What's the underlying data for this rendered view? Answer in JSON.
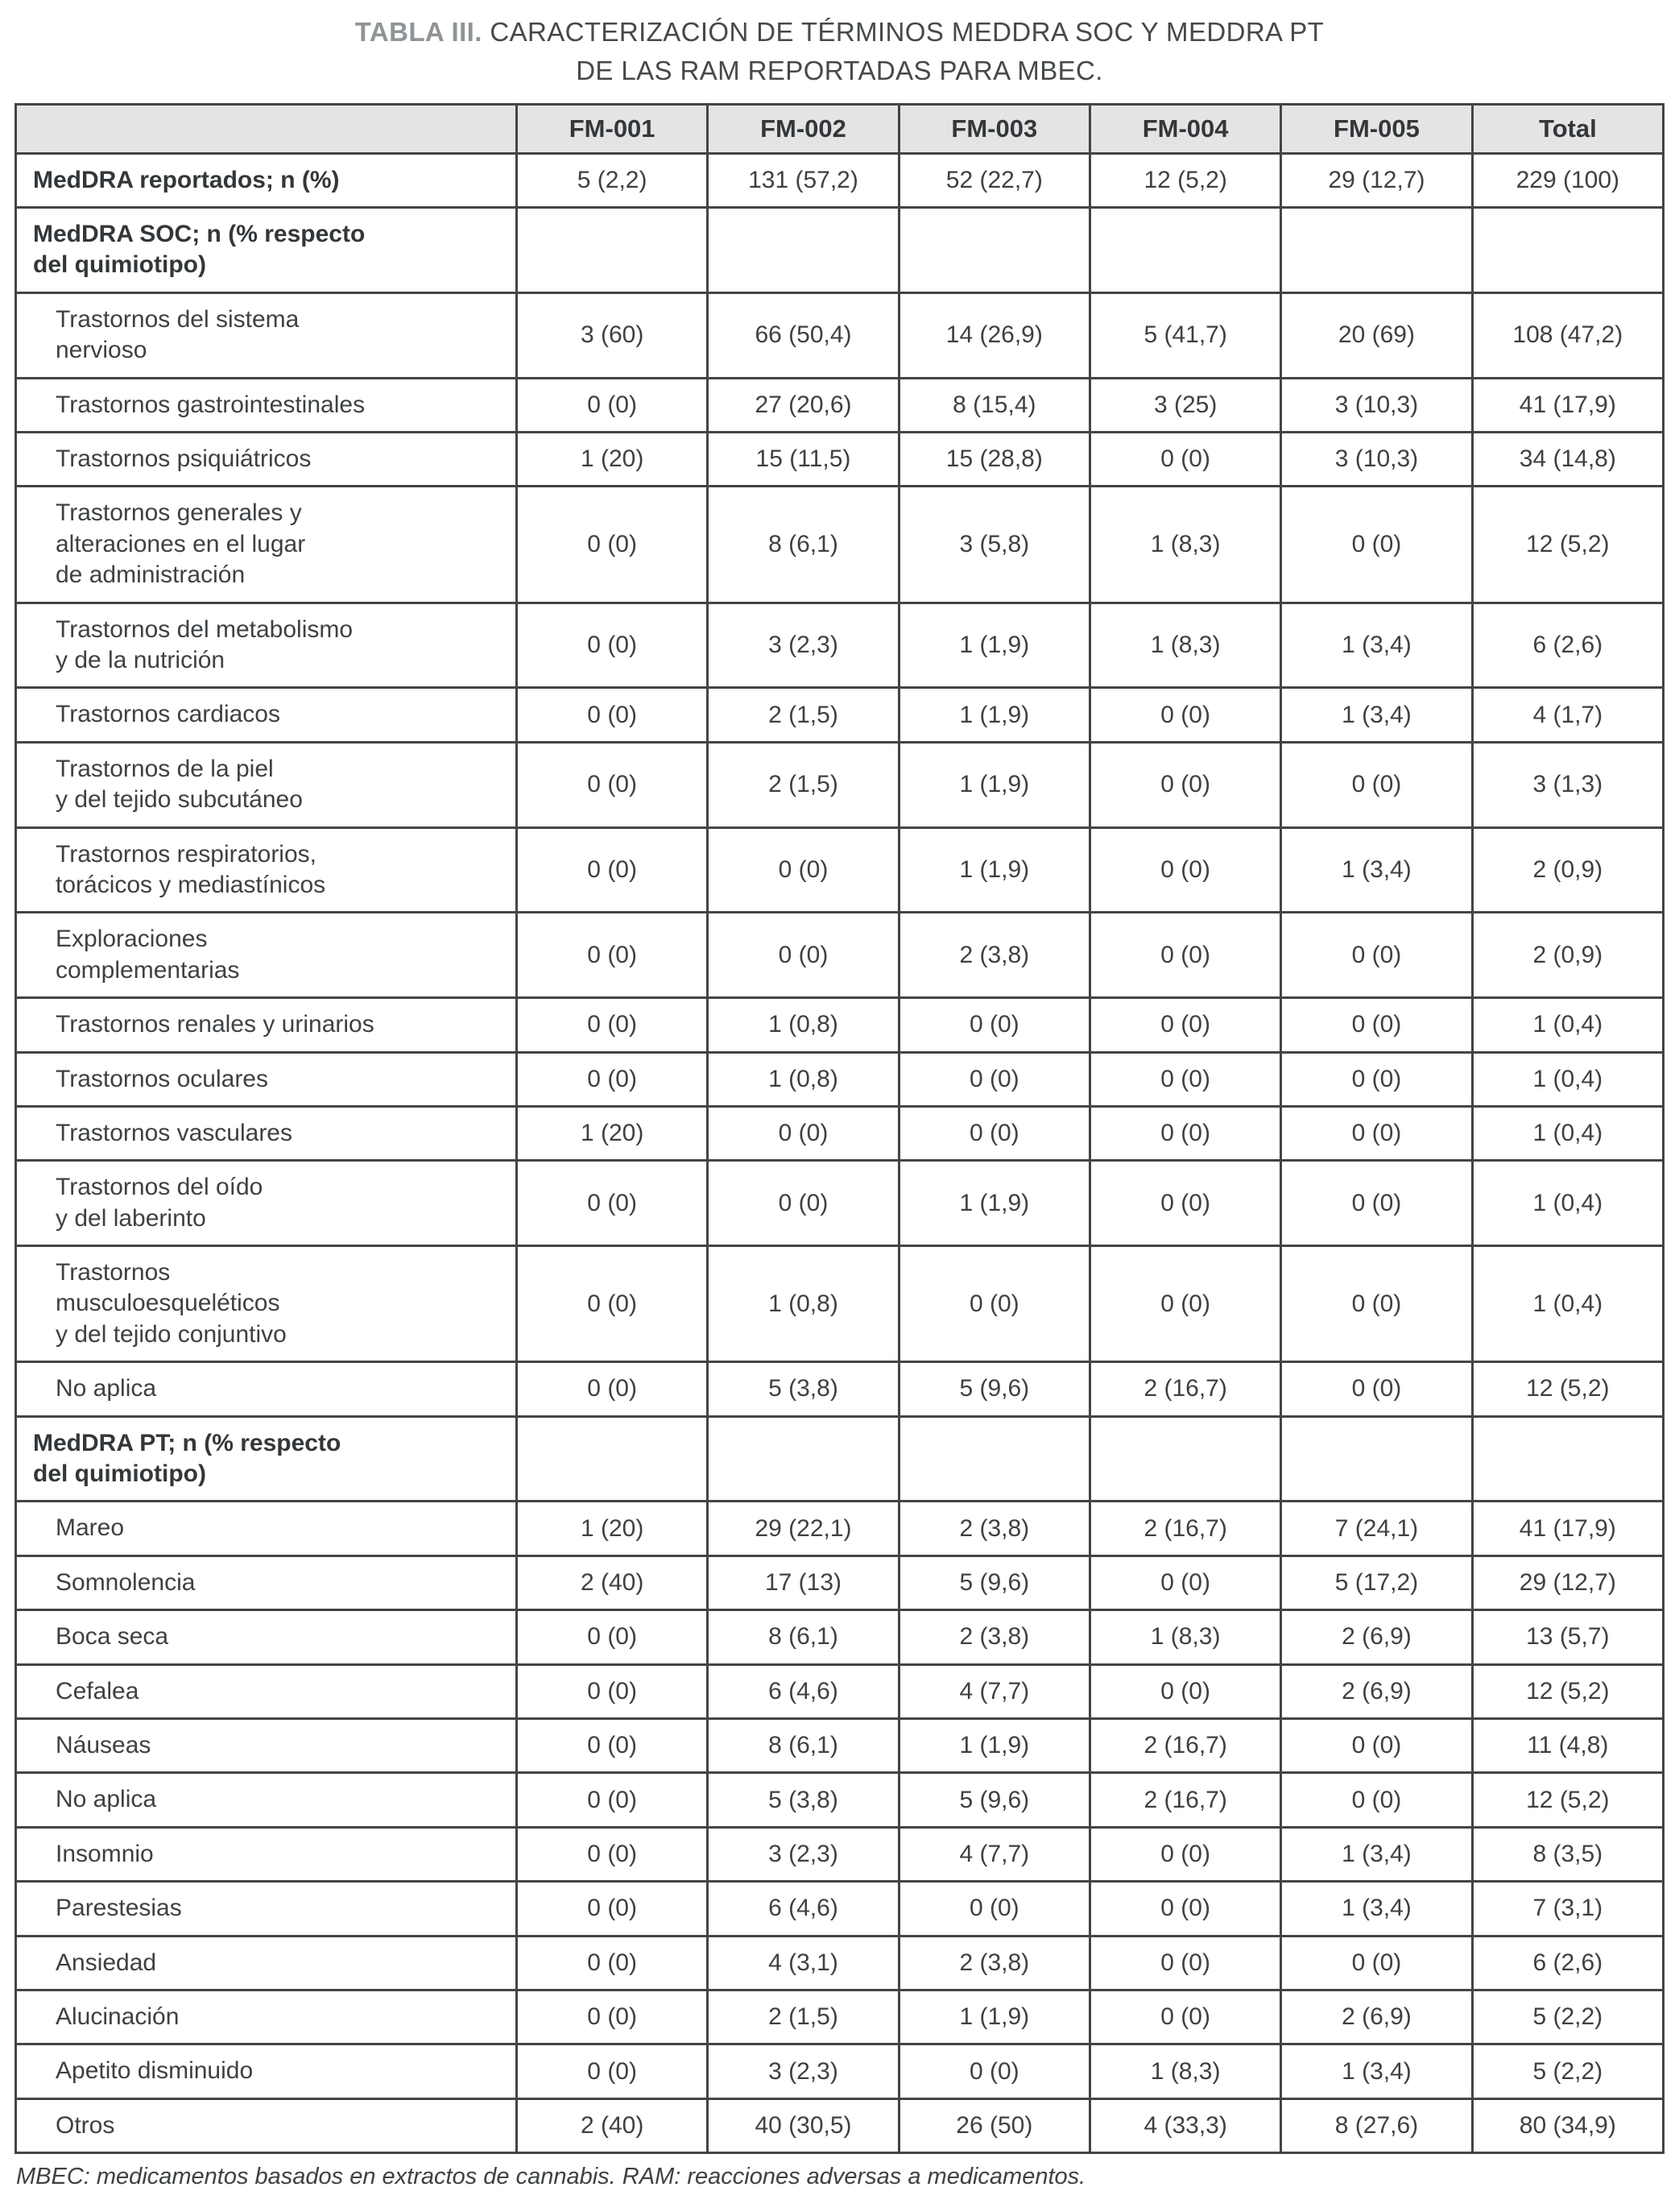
{
  "title": {
    "prefix": "TABLA III.",
    "line1": "CARACTERIZACIÓN DE TÉRMINOS MEDDRA SOC Y MEDDRA PT",
    "line2": "DE LAS RAM REPORTADAS PARA MBEC."
  },
  "table": {
    "columns": [
      "",
      "FM-001",
      "FM-002",
      "FM-003",
      "FM-004",
      "FM-005",
      "Total"
    ],
    "rows": [
      {
        "label": "MedDRA reportados; n (%)",
        "bold": true,
        "indent": false,
        "values": [
          "5 (2,2)",
          "131 (57,2)",
          "52 (22,7)",
          "12 (5,2)",
          "29 (12,7)",
          "229 (100)"
        ]
      },
      {
        "label": "MedDRA SOC; n (% respecto\ndel quimiotipo)",
        "bold": true,
        "indent": false,
        "values": [
          "",
          "",
          "",
          "",
          "",
          ""
        ]
      },
      {
        "label": "Trastornos del sistema\nnervioso",
        "bold": false,
        "indent": true,
        "values": [
          "3 (60)",
          "66 (50,4)",
          "14 (26,9)",
          "5 (41,7)",
          "20 (69)",
          "108 (47,2)"
        ]
      },
      {
        "label": "Trastornos gastrointestinales",
        "bold": false,
        "indent": true,
        "values": [
          "0 (0)",
          "27 (20,6)",
          "8 (15,4)",
          "3 (25)",
          "3 (10,3)",
          "41 (17,9)"
        ]
      },
      {
        "label": "Trastornos psiquiátricos",
        "bold": false,
        "indent": true,
        "values": [
          "1 (20)",
          "15 (11,5)",
          "15 (28,8)",
          "0 (0)",
          "3 (10,3)",
          "34 (14,8)"
        ]
      },
      {
        "label": "Trastornos generales y\nalteraciones en el lugar\nde administración",
        "bold": false,
        "indent": true,
        "values": [
          "0 (0)",
          "8 (6,1)",
          "3 (5,8)",
          "1 (8,3)",
          "0 (0)",
          "12 (5,2)"
        ]
      },
      {
        "label": "Trastornos del metabolismo\ny de la nutrición",
        "bold": false,
        "indent": true,
        "values": [
          "0 (0)",
          "3 (2,3)",
          "1 (1,9)",
          "1 (8,3)",
          "1 (3,4)",
          "6 (2,6)"
        ]
      },
      {
        "label": "Trastornos cardiacos",
        "bold": false,
        "indent": true,
        "values": [
          "0 (0)",
          "2 (1,5)",
          "1 (1,9)",
          "0 (0)",
          "1 (3,4)",
          "4 (1,7)"
        ]
      },
      {
        "label": "Trastornos de la piel\ny del tejido subcutáneo",
        "bold": false,
        "indent": true,
        "values": [
          "0 (0)",
          "2 (1,5)",
          "1 (1,9)",
          "0 (0)",
          "0 (0)",
          "3 (1,3)"
        ]
      },
      {
        "label": "Trastornos respiratorios,\ntorácicos y mediastínicos",
        "bold": false,
        "indent": true,
        "values": [
          "0 (0)",
          "0 (0)",
          "1 (1,9)",
          "0 (0)",
          "1 (3,4)",
          "2 (0,9)"
        ]
      },
      {
        "label": "Exploraciones\ncomplementarias",
        "bold": false,
        "indent": true,
        "values": [
          "0 (0)",
          "0 (0)",
          "2 (3,8)",
          "0 (0)",
          "0 (0)",
          "2 (0,9)"
        ]
      },
      {
        "label": "Trastornos renales y urinarios",
        "bold": false,
        "indent": true,
        "values": [
          "0 (0)",
          "1 (0,8)",
          "0 (0)",
          "0 (0)",
          "0 (0)",
          "1 (0,4)"
        ]
      },
      {
        "label": "Trastornos oculares",
        "bold": false,
        "indent": true,
        "values": [
          "0 (0)",
          "1 (0,8)",
          "0 (0)",
          "0 (0)",
          "0 (0)",
          "1 (0,4)"
        ]
      },
      {
        "label": "Trastornos vasculares",
        "bold": false,
        "indent": true,
        "values": [
          "1 (20)",
          "0 (0)",
          "0 (0)",
          "0 (0)",
          "0 (0)",
          "1 (0,4)"
        ]
      },
      {
        "label": "Trastornos del oído\ny del laberinto",
        "bold": false,
        "indent": true,
        "values": [
          "0 (0)",
          "0 (0)",
          "1 (1,9)",
          "0 (0)",
          "0 (0)",
          "1 (0,4)"
        ]
      },
      {
        "label": "Trastornos\nmusculoesqueléticos\ny del tejido conjuntivo",
        "bold": false,
        "indent": true,
        "values": [
          "0 (0)",
          "1 (0,8)",
          "0 (0)",
          "0 (0)",
          "0 (0)",
          "1 (0,4)"
        ]
      },
      {
        "label": "No aplica",
        "bold": false,
        "indent": true,
        "values": [
          "0 (0)",
          "5 (3,8)",
          "5 (9,6)",
          "2 (16,7)",
          "0 (0)",
          "12 (5,2)"
        ]
      },
      {
        "label": "MedDRA PT; n (% respecto\ndel quimiotipo)",
        "bold": true,
        "indent": false,
        "values": [
          "",
          "",
          "",
          "",
          "",
          ""
        ]
      },
      {
        "label": "Mareo",
        "bold": false,
        "indent": true,
        "values": [
          "1 (20)",
          "29 (22,1)",
          "2 (3,8)",
          "2 (16,7)",
          "7 (24,1)",
          "41 (17,9)"
        ]
      },
      {
        "label": "Somnolencia",
        "bold": false,
        "indent": true,
        "values": [
          "2 (40)",
          "17 (13)",
          "5 (9,6)",
          "0 (0)",
          "5 (17,2)",
          "29 (12,7)"
        ]
      },
      {
        "label": "Boca seca",
        "bold": false,
        "indent": true,
        "values": [
          "0 (0)",
          "8 (6,1)",
          "2 (3,8)",
          "1 (8,3)",
          "2 (6,9)",
          "13 (5,7)"
        ]
      },
      {
        "label": "Cefalea",
        "bold": false,
        "indent": true,
        "values": [
          "0 (0)",
          "6 (4,6)",
          "4 (7,7)",
          "0 (0)",
          "2 (6,9)",
          "12 (5,2)"
        ]
      },
      {
        "label": "Náuseas",
        "bold": false,
        "indent": true,
        "values": [
          "0 (0)",
          "8 (6,1)",
          "1 (1,9)",
          "2 (16,7)",
          "0 (0)",
          "11 (4,8)"
        ]
      },
      {
        "label": "No aplica",
        "bold": false,
        "indent": true,
        "values": [
          "0 (0)",
          "5 (3,8)",
          "5 (9,6)",
          "2 (16,7)",
          "0 (0)",
          "12 (5,2)"
        ]
      },
      {
        "label": "Insomnio",
        "bold": false,
        "indent": true,
        "values": [
          "0 (0)",
          "3 (2,3)",
          "4 (7,7)",
          "0 (0)",
          "1 (3,4)",
          "8 (3,5)"
        ]
      },
      {
        "label": "Parestesias",
        "bold": false,
        "indent": true,
        "values": [
          "0 (0)",
          "6 (4,6)",
          "0 (0)",
          "0 (0)",
          "1 (3,4)",
          "7 (3,1)"
        ]
      },
      {
        "label": "Ansiedad",
        "bold": false,
        "indent": true,
        "values": [
          "0 (0)",
          "4 (3,1)",
          "2 (3,8)",
          "0 (0)",
          "0 (0)",
          "6 (2,6)"
        ]
      },
      {
        "label": "Alucinación",
        "bold": false,
        "indent": true,
        "values": [
          "0 (0)",
          "2 (1,5)",
          "1 (1,9)",
          "0 (0)",
          "2 (6,9)",
          "5 (2,2)"
        ]
      },
      {
        "label": "Apetito disminuido",
        "bold": false,
        "indent": true,
        "values": [
          "0 (0)",
          "3 (2,3)",
          "0 (0)",
          "1 (8,3)",
          "1 (3,4)",
          "5 (2,2)"
        ]
      },
      {
        "label": "Otros",
        "bold": false,
        "indent": true,
        "values": [
          "2 (40)",
          "40 (30,5)",
          "26 (50)",
          "4 (33,3)",
          "8 (27,6)",
          "80 (34,9)"
        ]
      }
    ]
  },
  "footnote": "MBEC: medicamentos basados en extractos de cannabis. RAM: reacciones adversas a medicamentos."
}
